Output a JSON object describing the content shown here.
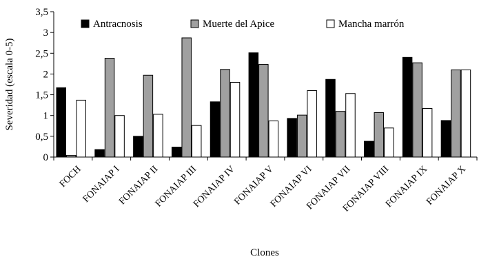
{
  "chart_data": {
    "type": "bar",
    "title": "",
    "xlabel": "Clones",
    "ylabel": "Severidad (escala 0-5)",
    "ylim": [
      0,
      3.5
    ],
    "yticks": [
      "0",
      "0,5",
      "1",
      "1,5",
      "2",
      "2,5",
      "3",
      "3,5"
    ],
    "grid": false,
    "legend_position": "top",
    "categories": [
      "FOCH",
      "FONAIAP I",
      "FONAIAP II",
      "FONAIAP III",
      "FONAIAP IV",
      "FONAIAP V",
      "FONAIAP VI",
      "FONAIAP VII",
      "FONAIAP VIII",
      "FONAIAP IX",
      "FONAIAP X"
    ],
    "series": [
      {
        "name": "Antracnosis",
        "color": "#000000",
        "values": [
          1.67,
          0.18,
          0.5,
          0.24,
          1.33,
          2.51,
          0.93,
          1.87,
          0.38,
          2.4,
          0.88
        ]
      },
      {
        "name": "Muerte del Apice",
        "color": "#a0a0a0",
        "values": [
          0.04,
          2.38,
          1.97,
          2.87,
          2.11,
          2.23,
          1.01,
          1.1,
          1.07,
          2.27,
          2.1
        ]
      },
      {
        "name": "Mancha marrón",
        "color": "#ffffff",
        "values": [
          1.37,
          1.0,
          1.03,
          0.76,
          1.8,
          0.87,
          1.6,
          1.53,
          0.7,
          1.17,
          2.1
        ]
      }
    ]
  }
}
